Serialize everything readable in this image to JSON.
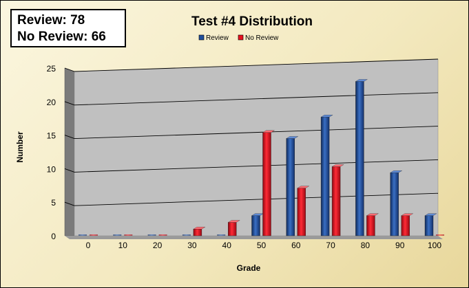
{
  "score_box": {
    "line1": "Review: 78",
    "line2": "No Review: 66"
  },
  "chart_data": {
    "type": "bar",
    "title": "Test #4 Distribution",
    "xlabel": "Grade",
    "ylabel": "Number",
    "categories": [
      "0",
      "10",
      "20",
      "30",
      "40",
      "50",
      "60",
      "70",
      "80",
      "90",
      "100"
    ],
    "series": [
      {
        "name": "Review",
        "color": "#1f4e9c",
        "values": [
          0,
          0,
          0,
          0,
          0,
          3,
          14.5,
          17.7,
          23,
          9.4,
          3
        ]
      },
      {
        "name": "No Review",
        "color": "#e8101f",
        "values": [
          0,
          0,
          0,
          1,
          2,
          15.4,
          7.1,
          10.3,
          3,
          3,
          0
        ]
      }
    ],
    "ylim": [
      0,
      25
    ],
    "yticks": [
      0,
      5,
      10,
      15,
      20,
      25
    ],
    "grid": true,
    "legend_position": "top"
  }
}
